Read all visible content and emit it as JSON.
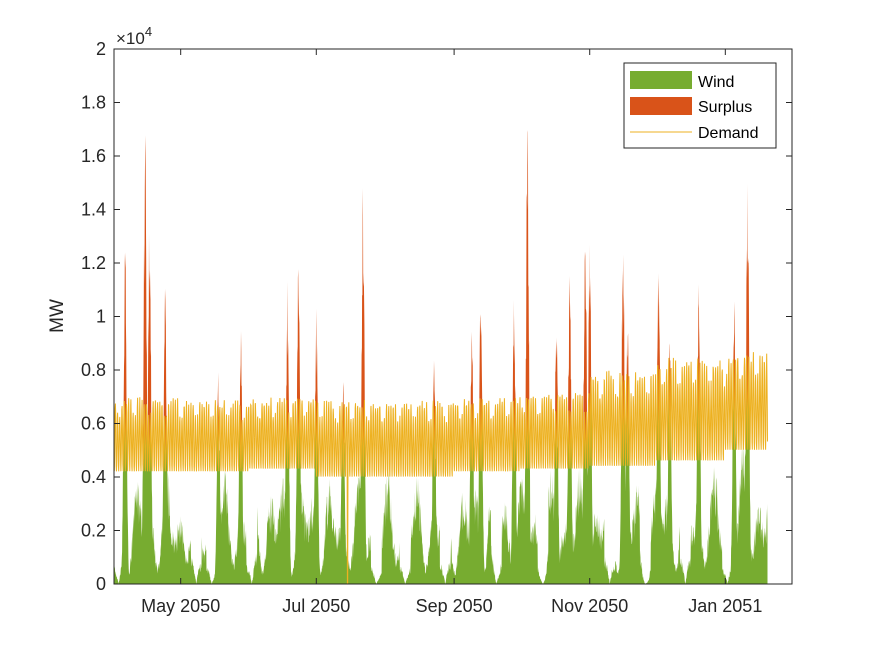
{
  "chart_data": {
    "type": "area",
    "ylabel": "MW",
    "y_exponent_label": "×10",
    "y_exponent_power": "4",
    "ylim": [
      0,
      20000
    ],
    "yticks": [
      0,
      2000,
      4000,
      6000,
      8000,
      10000,
      12000,
      14000,
      16000,
      18000,
      20000
    ],
    "ytick_labels": [
      "0",
      "0.2",
      "0.4",
      "0.6",
      "0.8",
      "1",
      "1.2",
      "1.4",
      "1.6",
      "1.8",
      "2"
    ],
    "xlim": [
      "2050-04-01",
      "2051-01-31"
    ],
    "xticks": [
      "2050-05-01",
      "2050-07-01",
      "2050-09-01",
      "2050-11-01",
      "2051-01-01"
    ],
    "xtick_labels": [
      "May 2050",
      "Jul 2050",
      "Sep 2050",
      "Nov 2050",
      "Jan 2051"
    ],
    "data_range": [
      "2050-04-01",
      "2051-01-20"
    ],
    "grid": false,
    "legend_position": "top-right",
    "series": [
      {
        "name": "Wind",
        "style": "area",
        "color": "#77AC30"
      },
      {
        "name": "Surplus",
        "style": "area",
        "color": "#D95319"
      },
      {
        "name": "Demand",
        "style": "line",
        "color": "#EDB120"
      }
    ],
    "monthly_summary": {
      "months": [
        "2050-04",
        "2050-05",
        "2050-06",
        "2050-07",
        "2050-08",
        "2050-09",
        "2050-10",
        "2050-11",
        "2050-12",
        "2051-01"
      ],
      "demand_min": [
        4200,
        4200,
        4300,
        4000,
        4000,
        4200,
        4300,
        4400,
        4600,
        5000
      ],
      "demand_max": [
        7000,
        6900,
        7000,
        6900,
        6900,
        7000,
        7200,
        8000,
        8500,
        8700
      ],
      "wind_peak": [
        16500,
        8000,
        12600,
        15300,
        9000,
        17200,
        14500,
        13300,
        12000,
        16300
      ]
    },
    "surplus_peaks": [
      {
        "date": "2050-04-06",
        "value": 12700
      },
      {
        "date": "2050-04-15",
        "value": 17300
      },
      {
        "date": "2050-04-17",
        "value": 14200
      },
      {
        "date": "2050-04-24",
        "value": 11700
      },
      {
        "date": "2050-05-18",
        "value": 8100
      },
      {
        "date": "2050-05-28",
        "value": 9900
      },
      {
        "date": "2050-06-18",
        "value": 11400
      },
      {
        "date": "2050-06-23",
        "value": 12600
      },
      {
        "date": "2050-07-01",
        "value": 10500
      },
      {
        "date": "2050-07-13",
        "value": 8200
      },
      {
        "date": "2050-07-22",
        "value": 15300
      },
      {
        "date": "2050-08-23",
        "value": 9000
      },
      {
        "date": "2050-09-09",
        "value": 10000
      },
      {
        "date": "2050-09-13",
        "value": 12000
      },
      {
        "date": "2050-09-28",
        "value": 11000
      },
      {
        "date": "2050-10-04",
        "value": 17200
      },
      {
        "date": "2050-10-17",
        "value": 10500
      },
      {
        "date": "2050-10-23",
        "value": 12300
      },
      {
        "date": "2050-10-30",
        "value": 14500
      },
      {
        "date": "2050-11-01",
        "value": 13700
      },
      {
        "date": "2050-11-16",
        "value": 13300
      },
      {
        "date": "2050-11-18",
        "value": 10500
      },
      {
        "date": "2050-12-02",
        "value": 12800
      },
      {
        "date": "2050-12-07",
        "value": 9500
      },
      {
        "date": "2050-12-20",
        "value": 11500
      },
      {
        "date": "2051-01-05",
        "value": 11200
      },
      {
        "date": "2051-01-11",
        "value": 16300
      }
    ],
    "wind_low_periods": [
      {
        "date": "2050-04-03",
        "value": 0
      },
      {
        "date": "2050-05-08",
        "value": 0
      },
      {
        "date": "2050-05-15",
        "value": 0
      },
      {
        "date": "2050-06-02",
        "value": 0
      },
      {
        "date": "2050-07-28",
        "value": 0
      },
      {
        "date": "2050-08-10",
        "value": 0
      },
      {
        "date": "2050-08-28",
        "value": 0
      },
      {
        "date": "2050-09-20",
        "value": 0
      },
      {
        "date": "2050-10-11",
        "value": 0
      },
      {
        "date": "2050-11-10",
        "value": 0
      },
      {
        "date": "2050-11-26",
        "value": 0
      },
      {
        "date": "2050-12-14",
        "value": 0
      },
      {
        "date": "2051-01-02",
        "value": 0
      }
    ],
    "demand_spike": {
      "date": "2050-07-15",
      "value": 0
    }
  }
}
